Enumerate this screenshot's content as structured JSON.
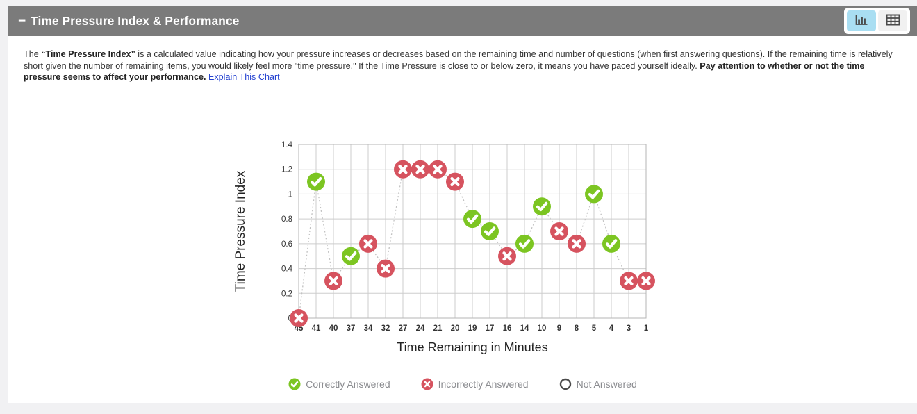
{
  "header": {
    "collapse_icon": "−",
    "title": "Time Pressure Index & Performance",
    "bar_color": "#7b7b7b",
    "view_buttons": {
      "chart_button": {
        "icon": "bar-chart-icon",
        "active": true,
        "active_bg": "#a9def2"
      },
      "table_button": {
        "icon": "table-icon",
        "active": false,
        "bg": "#f1f1f1"
      }
    }
  },
  "description": {
    "parts": [
      {
        "text": "The ",
        "bold": false
      },
      {
        "text": "“Time Pressure Index”",
        "bold": true
      },
      {
        "text": " is a calculated value indicating how your pressure increases or decreases based on the remaining time and number of questions (when first answering questions). If the remaining time is relatively short given the number of remaining items, you would likely feel more \"time pressure.\" If the Time Pressure is close to or below zero, it means you have paced yourself ideally. ",
        "bold": false
      },
      {
        "text": "Pay attention to whether or not the time pressure seems to affect your performance.",
        "bold": true
      },
      {
        "text": " ",
        "bold": false
      }
    ],
    "link": "Explain This Chart"
  },
  "chart_data": {
    "type": "scatter",
    "title": "",
    "xlabel": "Time Remaining in Minutes",
    "ylabel": "Time Pressure Index",
    "ylim": [
      0,
      1.4
    ],
    "ytick_step": 0.2,
    "grid": true,
    "line_style": "dashed",
    "categories": [
      45,
      41,
      40,
      37,
      34,
      32,
      27,
      24,
      21,
      20,
      19,
      17,
      16,
      14,
      10,
      9,
      8,
      5,
      4,
      3,
      1
    ],
    "values": [
      0,
      1.1,
      0.3,
      0.5,
      0.6,
      0.4,
      1.2,
      1.2,
      1.2,
      1.1,
      0.8,
      0.7,
      0.5,
      0.6,
      0.9,
      0.7,
      0.6,
      1.0,
      0.6,
      0.3,
      0.3
    ],
    "status": [
      "incorrect",
      "correct",
      "incorrect",
      "correct",
      "incorrect",
      "incorrect",
      "incorrect",
      "incorrect",
      "incorrect",
      "incorrect",
      "correct",
      "correct",
      "incorrect",
      "correct",
      "correct",
      "incorrect",
      "incorrect",
      "correct",
      "correct",
      "incorrect",
      "incorrect"
    ],
    "colors": {
      "correct": "#7cc522",
      "incorrect": "#d6535f",
      "not_answered": "#ffffff",
      "grid": "#cdcdcd",
      "border": "#b5b5b5",
      "line": "#c2c2c2"
    }
  },
  "legend": [
    {
      "label": "Correctly Answered",
      "marker": "check-circle-icon",
      "color": "#7cc522"
    },
    {
      "label": "Incorrectly Answered",
      "marker": "x-circle-icon",
      "color": "#d6535f"
    },
    {
      "label": "Not Answered",
      "marker": "open-circle-icon",
      "color": "#ffffff"
    }
  ]
}
